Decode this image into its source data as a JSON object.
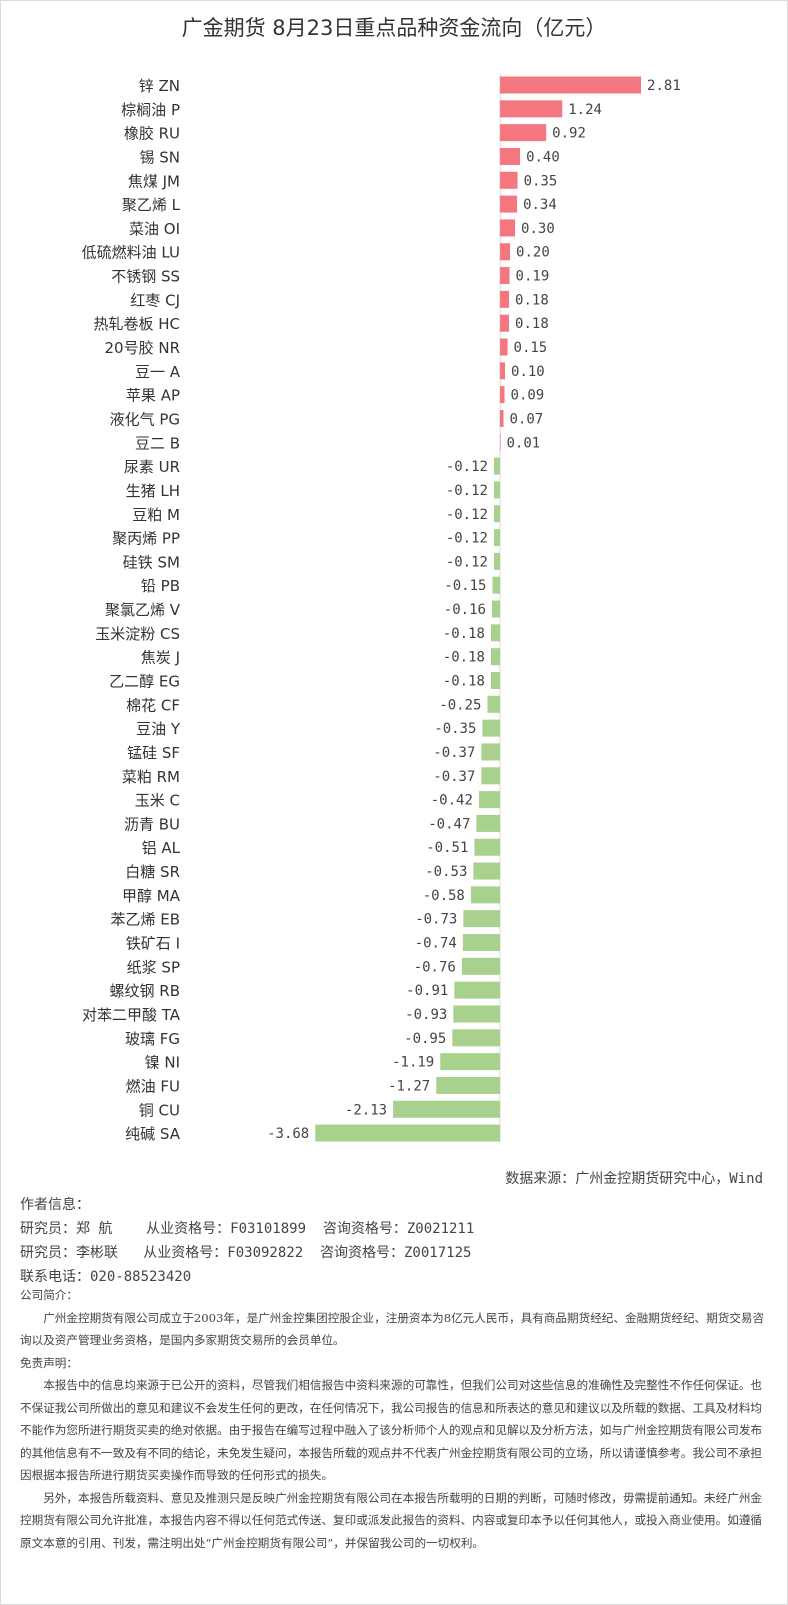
{
  "chart_data": {
    "type": "bar",
    "orientation": "horizontal",
    "title": "广金期货 8月23日重点品种资金流向（亿元）",
    "categories": [
      "锌 ZN",
      "棕榈油 P",
      "橡胶 RU",
      "锡 SN",
      "焦煤 JM",
      "聚乙烯 L",
      "菜油 OI",
      "低硫燃料油 LU",
      "不锈钢 SS",
      "红枣 CJ",
      "热轧卷板 HC",
      "20号胶 NR",
      "豆一 A",
      "苹果 AP",
      "液化气 PG",
      "豆二 B",
      "尿素 UR",
      "生猪 LH",
      "豆粕 M",
      "聚丙烯 PP",
      "硅铁 SM",
      "铅 PB",
      "聚氯乙烯 V",
      "玉米淀粉 CS",
      "焦炭 J",
      "乙二醇 EG",
      "棉花 CF",
      "豆油 Y",
      "锰硅 SF",
      "菜粕 RM",
      "玉米 C",
      "沥青 BU",
      "铝 AL",
      "白糖 SR",
      "甲醇 MA",
      "苯乙烯 EB",
      "铁矿石 I",
      "纸浆 SP",
      "螺纹钢 RB",
      "对苯二甲酸 TA",
      "玻璃 FG",
      "镍 NI",
      "燃油 FU",
      "铜 CU",
      "纯碱 SA"
    ],
    "values": [
      2.81,
      1.24,
      0.92,
      0.4,
      0.35,
      0.34,
      0.3,
      0.2,
      0.19,
      0.18,
      0.18,
      0.15,
      0.1,
      0.09,
      0.07,
      0.01,
      -0.12,
      -0.12,
      -0.12,
      -0.12,
      -0.12,
      -0.15,
      -0.16,
      -0.18,
      -0.18,
      -0.18,
      -0.25,
      -0.35,
      -0.37,
      -0.37,
      -0.42,
      -0.47,
      -0.51,
      -0.53,
      -0.58,
      -0.73,
      -0.74,
      -0.76,
      -0.91,
      -0.93,
      -0.95,
      -1.19,
      -1.27,
      -2.13,
      -3.68
    ],
    "colors": {
      "positive": "#f4777f",
      "negative": "#a9d18e"
    },
    "xlim": [
      -3.68,
      2.81
    ],
    "grid": false,
    "legend": "none"
  },
  "source": "数据来源：广州金控期货研究中心，Wind",
  "author": {
    "heading": "作者信息：",
    "r1": "研究员：郑 航    从业资格号：F03101899  咨询资格号：Z0021211",
    "r2": "研究员：李彬联   从业资格号：F03092822  咨询资格号：Z0017125",
    "phone": "联系电话：020-88523420"
  },
  "company": {
    "heading": "公司简介：",
    "text": "广州金控期货有限公司成立于2003年，是广州金控集团控股企业，注册资本为8亿元人民币，具有商品期货经纪、金融期货经纪、期货交易咨询以及资产管理业务资格，是国内多家期货交易所的会员单位。"
  },
  "disclaimer": {
    "heading": "免责声明：",
    "p1": "本报告中的信息均来源于已公开的资料，尽管我们相信报告中资料来源的可靠性，但我们公司对这些信息的准确性及完整性不作任何保证。也不保证我公司所做出的意见和建议不会发生任何的更改，在任何情况下，我公司报告的信息和所表达的意见和建议以及所载的数据、工具及材料均不能作为您所进行期货买卖的绝对依据。由于报告在编写过程中融入了该分析师个人的观点和见解以及分析方法，如与广州金控期货有限公司发布的其他信息有不一致及有不同的结论，未免发生疑问，本报告所载的观点并不代表广州金控期货有限公司的立场，所以请谨慎参考。我公司不承担因根据本报告所进行期货买卖操作而导致的任何形式的损失。",
    "p2": "另外，本报告所载资料、意见及推测只是反映广州金控期货有限公司在本报告所载明的日期的判断，可随时修改，毋需提前通知。未经广州金控期货有限公司允许批准，本报告内容不得以任何范式传送、复印或派发此报告的资料、内容或复印本予以任何其他人，或投入商业使用。如遵循原文本意的引用、刊发，需注明出处“广州金控期货有限公司”，并保留我公司的一切权利。"
  }
}
